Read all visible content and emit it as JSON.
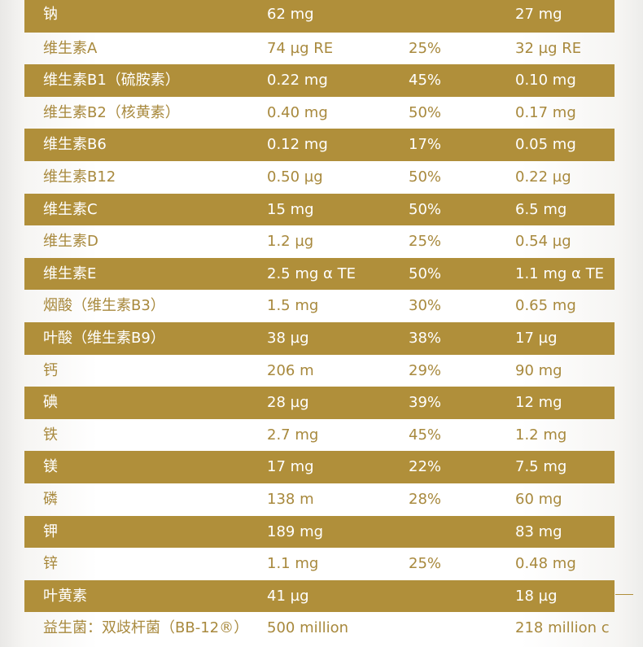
{
  "rows": [
    {
      "name": "钠",
      "amount": "62 mg",
      "nrv": "",
      "per": "27 mg"
    },
    {
      "name": "维生素A",
      "amount": "74 µg RE",
      "nrv": "25%",
      "per": "32 µg RE"
    },
    {
      "name": "维生素B1（硫胺素）",
      "amount": "0.22 mg",
      "nrv": "45%",
      "per": "0.10 mg"
    },
    {
      "name": "维生素B2（核黄素）",
      "amount": "0.40 mg",
      "nrv": "50%",
      "per": "0.17 mg"
    },
    {
      "name": "维生素B6",
      "amount": "0.12 mg",
      "nrv": "17%",
      "per": "0.05 mg"
    },
    {
      "name": "维生素B12",
      "amount": "0.50 µg",
      "nrv": "50%",
      "per": "0.22 µg"
    },
    {
      "name": "维生素C",
      "amount": "15 mg",
      "nrv": "50%",
      "per": "6.5 mg"
    },
    {
      "name": "维生素D",
      "amount": "1.2 µg",
      "nrv": "25%",
      "per": "0.54 µg"
    },
    {
      "name": "维生素E",
      "amount": "2.5 mg α TE",
      "nrv": "50%",
      "per": "1.1 mg α TE"
    },
    {
      "name": "烟酸（维生素B3）",
      "amount": "1.5 mg",
      "nrv": "30%",
      "per": "0.65 mg"
    },
    {
      "name": "叶酸（维生素B9）",
      "amount": "38 µg",
      "nrv": "38%",
      "per": "17 µg"
    },
    {
      "name": "钙",
      "amount": "206 m",
      "nrv": "29%",
      "per": "90 mg"
    },
    {
      "name": "碘",
      "amount": "28 µg",
      "nrv": "39%",
      "per": "12 mg"
    },
    {
      "name": "铁",
      "amount": "2.7 mg",
      "nrv": "45%",
      "per": "1.2 mg"
    },
    {
      "name": "镁",
      "amount": "17 mg",
      "nrv": "22%",
      "per": "7.5 mg"
    },
    {
      "name": "磷",
      "amount": "138 m",
      "nrv": "28%",
      "per": "60 mg"
    },
    {
      "name": "钾",
      "amount": "189 mg",
      "nrv": "",
      "per": "83 mg"
    },
    {
      "name": "锌",
      "amount": "1.1 mg",
      "nrv": "25%",
      "per": "0.48 mg"
    },
    {
      "name": "叶黄素",
      "amount": "41 µg",
      "nrv": "",
      "per": "18 µg"
    },
    {
      "name": "益生菌：双歧杆菌（BB-12®）",
      "amount": "500 million",
      "nrv": "",
      "per": "218 million c"
    }
  ]
}
